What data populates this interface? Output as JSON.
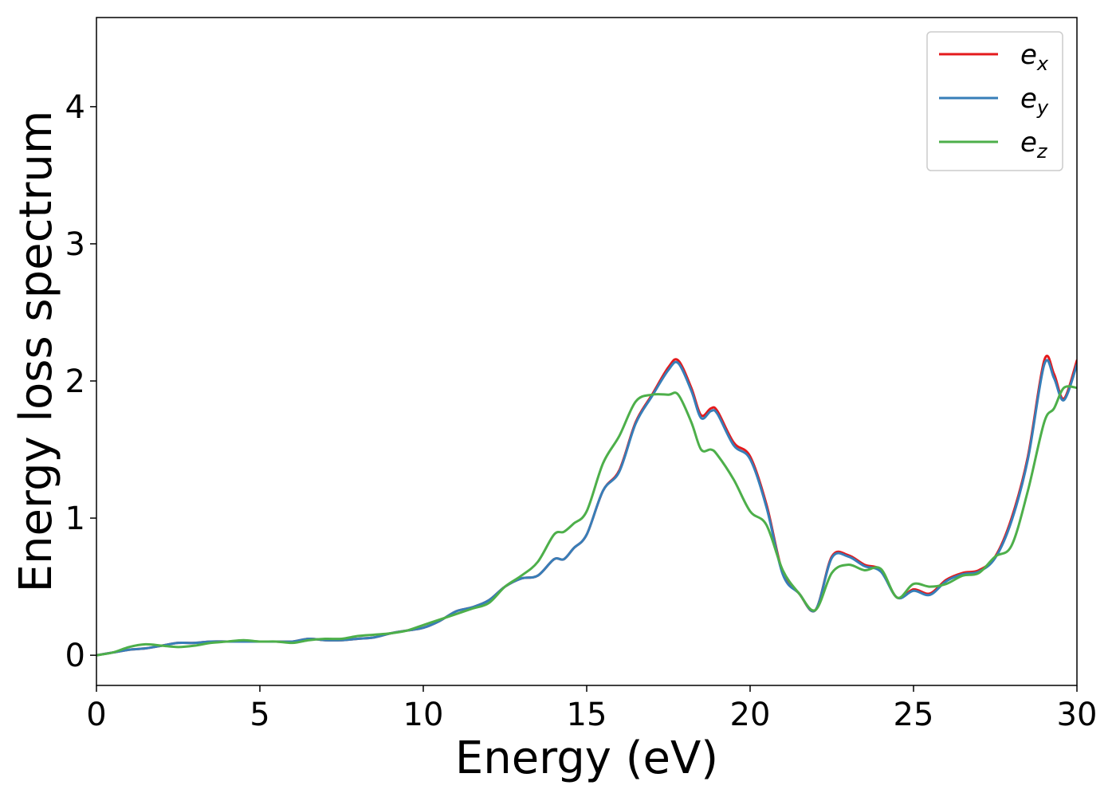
{
  "chart_data": {
    "type": "line",
    "title": "",
    "xlabel": "Energy (eV)",
    "ylabel": "Energy loss spectrum",
    "xlim": [
      0,
      30
    ],
    "ylim": [
      -0.22,
      4.65
    ],
    "xticks": [
      0,
      5,
      10,
      15,
      20,
      25,
      30
    ],
    "yticks": [
      0,
      1,
      2,
      3,
      4
    ],
    "xtick_labels": [
      "0",
      "5",
      "10",
      "15",
      "20",
      "25",
      "30"
    ],
    "ytick_labels": [
      "0",
      "1",
      "2",
      "3",
      "4"
    ],
    "grid": false,
    "legend_position": "top-right",
    "series": [
      {
        "name": "e",
        "subscript": "x",
        "color": "#e41a1c",
        "x": [
          0,
          0.5,
          1,
          1.5,
          2,
          2.5,
          3,
          3.5,
          4,
          4.5,
          5,
          5.5,
          6,
          6.5,
          7,
          7.5,
          8,
          8.5,
          9,
          9.5,
          10,
          10.5,
          11,
          11.5,
          12,
          12.5,
          13,
          13.5,
          14,
          14.3,
          14.6,
          15,
          15.5,
          16,
          16.5,
          17,
          17.5,
          17.8,
          18.2,
          18.5,
          18.8,
          19,
          19.5,
          20,
          20.5,
          21,
          21.5,
          22,
          22.5,
          23,
          23.5,
          24,
          24.5,
          25,
          25.5,
          26,
          26.5,
          27,
          27.5,
          28,
          28.5,
          29,
          29.3,
          29.6,
          30
        ],
        "y": [
          0,
          0.02,
          0.04,
          0.05,
          0.07,
          0.09,
          0.09,
          0.1,
          0.1,
          0.1,
          0.1,
          0.1,
          0.1,
          0.12,
          0.11,
          0.11,
          0.12,
          0.13,
          0.16,
          0.18,
          0.2,
          0.25,
          0.32,
          0.35,
          0.4,
          0.5,
          0.56,
          0.58,
          0.7,
          0.7,
          0.78,
          0.88,
          1.2,
          1.35,
          1.7,
          1.9,
          2.1,
          2.15,
          1.95,
          1.75,
          1.8,
          1.78,
          1.55,
          1.45,
          1.1,
          0.6,
          0.45,
          0.33,
          0.72,
          0.73,
          0.66,
          0.62,
          0.42,
          0.48,
          0.45,
          0.55,
          0.6,
          0.62,
          0.72,
          1.0,
          1.45,
          2.15,
          2.05,
          1.87,
          2.15
        ]
      },
      {
        "name": "e",
        "subscript": "y",
        "color": "#377eb8",
        "x": [
          0,
          0.5,
          1,
          1.5,
          2,
          2.5,
          3,
          3.5,
          4,
          4.5,
          5,
          5.5,
          6,
          6.5,
          7,
          7.5,
          8,
          8.5,
          9,
          9.5,
          10,
          10.5,
          11,
          11.5,
          12,
          12.5,
          13,
          13.5,
          14,
          14.3,
          14.6,
          15,
          15.5,
          16,
          16.5,
          17,
          17.5,
          17.8,
          18.2,
          18.5,
          18.8,
          19,
          19.5,
          20,
          20.5,
          21,
          21.5,
          22,
          22.5,
          23,
          23.5,
          24,
          24.5,
          25,
          25.5,
          26,
          26.5,
          27,
          27.5,
          28,
          28.5,
          29,
          29.3,
          29.6,
          30
        ],
        "y": [
          0,
          0.02,
          0.04,
          0.05,
          0.07,
          0.09,
          0.09,
          0.1,
          0.1,
          0.1,
          0.1,
          0.1,
          0.1,
          0.12,
          0.11,
          0.11,
          0.12,
          0.13,
          0.16,
          0.18,
          0.2,
          0.25,
          0.32,
          0.35,
          0.4,
          0.5,
          0.56,
          0.58,
          0.7,
          0.7,
          0.78,
          0.88,
          1.2,
          1.34,
          1.69,
          1.89,
          2.08,
          2.13,
          1.93,
          1.73,
          1.78,
          1.76,
          1.53,
          1.43,
          1.08,
          0.59,
          0.45,
          0.33,
          0.71,
          0.72,
          0.65,
          0.61,
          0.42,
          0.47,
          0.44,
          0.54,
          0.59,
          0.61,
          0.71,
          0.98,
          1.43,
          2.12,
          2.02,
          1.86,
          2.12
        ]
      },
      {
        "name": "e",
        "subscript": "z",
        "color": "#4daf4a",
        "x": [
          0,
          0.5,
          1,
          1.5,
          2,
          2.5,
          3,
          3.5,
          4,
          4.5,
          5,
          5.5,
          6,
          6.5,
          7,
          7.5,
          8,
          8.5,
          9,
          9.5,
          10,
          10.5,
          11,
          11.5,
          12,
          12.5,
          13,
          13.5,
          14,
          14.3,
          14.6,
          15,
          15.5,
          16,
          16.5,
          17,
          17.5,
          17.8,
          18.2,
          18.5,
          18.8,
          19,
          19.5,
          20,
          20.5,
          21,
          21.5,
          22,
          22.5,
          23,
          23.5,
          24,
          24.5,
          25,
          25.5,
          26,
          26.5,
          27,
          27.5,
          28,
          28.5,
          29,
          29.3,
          29.6,
          30
        ],
        "y": [
          0,
          0.02,
          0.06,
          0.08,
          0.07,
          0.06,
          0.07,
          0.09,
          0.1,
          0.11,
          0.1,
          0.1,
          0.09,
          0.11,
          0.12,
          0.12,
          0.14,
          0.15,
          0.16,
          0.18,
          0.22,
          0.26,
          0.3,
          0.34,
          0.38,
          0.5,
          0.58,
          0.68,
          0.88,
          0.9,
          0.96,
          1.05,
          1.4,
          1.6,
          1.85,
          1.9,
          1.9,
          1.9,
          1.7,
          1.5,
          1.5,
          1.46,
          1.28,
          1.05,
          0.95,
          0.62,
          0.45,
          0.33,
          0.6,
          0.66,
          0.62,
          0.63,
          0.42,
          0.52,
          0.5,
          0.52,
          0.58,
          0.6,
          0.72,
          0.8,
          1.2,
          1.7,
          1.8,
          1.95,
          1.95
        ]
      }
    ]
  }
}
